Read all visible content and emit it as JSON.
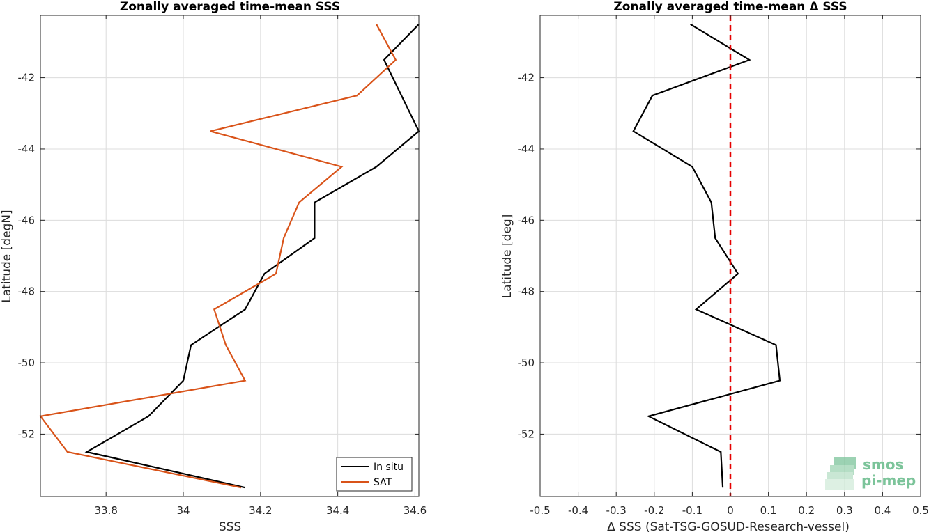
{
  "colors": {
    "in_situ": "#000000",
    "sat": "#d95319",
    "zero_line": "#e60000",
    "grid": "#dcdcdc",
    "axis": "#262626",
    "logo": "#7cc49a"
  },
  "chart_data": [
    {
      "type": "line",
      "title": "Zonally averaged time-mean SSS",
      "xlabel": "SSS",
      "ylabel": "Latitude [degN]",
      "xlim": [
        33.63,
        34.61
      ],
      "ylim": [
        -53.75,
        -40.25
      ],
      "xticks": [
        33.8,
        34,
        34.2,
        34.4,
        34.6
      ],
      "xtick_labels": [
        "33.8",
        "34",
        "34.2",
        "34.4",
        "34.6"
      ],
      "yticks": [
        -52,
        -50,
        -48,
        -46,
        -44,
        -42
      ],
      "ytick_labels": [
        "-52",
        "-50",
        "-48",
        "-46",
        "-44",
        "-42"
      ],
      "grid": true,
      "legend_position": "bottom-right",
      "series": [
        {
          "name": "In situ",
          "color": "#000000",
          "points": [
            [
              34.61,
              -40.5
            ],
            [
              34.52,
              -41.5
            ],
            [
              34.61,
              -43.5
            ],
            [
              34.5,
              -44.5
            ],
            [
              34.34,
              -45.5
            ],
            [
              34.34,
              -46.5
            ],
            [
              34.21,
              -47.5
            ],
            [
              34.16,
              -48.5
            ],
            [
              34.02,
              -49.5
            ],
            [
              34.0,
              -50.5
            ],
            [
              33.91,
              -51.5
            ],
            [
              33.75,
              -52.5
            ],
            [
              34.16,
              -53.5
            ]
          ]
        },
        {
          "name": "SAT",
          "color": "#d95319",
          "points": [
            [
              34.5,
              -40.5
            ],
            [
              34.55,
              -41.5
            ],
            [
              34.45,
              -42.5
            ],
            [
              34.07,
              -43.5
            ],
            [
              34.41,
              -44.5
            ],
            [
              34.3,
              -45.5
            ],
            [
              34.26,
              -46.5
            ],
            [
              34.24,
              -47.5
            ],
            [
              34.08,
              -48.5
            ],
            [
              34.11,
              -49.5
            ],
            [
              34.16,
              -50.5
            ],
            [
              33.63,
              -51.5
            ],
            [
              33.7,
              -52.5
            ],
            [
              34.15,
              -53.5
            ]
          ]
        }
      ]
    },
    {
      "type": "line",
      "title": "Zonally averaged time-mean Δ SSS",
      "xlabel": "Δ SSS (Sat-TSG-GOSUD-Research-vessel)",
      "ylabel": "Latitude [deg]",
      "xlim": [
        -0.5,
        0.5
      ],
      "ylim": [
        -53.75,
        -40.25
      ],
      "xticks": [
        -0.5,
        -0.4,
        -0.3,
        -0.2,
        -0.1,
        0,
        0.1,
        0.2,
        0.3,
        0.4,
        0.5
      ],
      "xtick_labels": [
        "-0.5",
        "-0.4",
        "-0.3",
        "-0.2",
        "-0.1",
        "0",
        "0.1",
        "0.2",
        "0.3",
        "0.4",
        "0.5"
      ],
      "yticks": [
        -52,
        -50,
        -48,
        -46,
        -44,
        -42
      ],
      "ytick_labels": [
        "-52",
        "-50",
        "-48",
        "-46",
        "-44",
        "-42"
      ],
      "grid": true,
      "reference_line_x": 0,
      "series": [
        {
          "color": "#000000",
          "points": [
            [
              -0.105,
              -40.5
            ],
            [
              0.05,
              -41.5
            ],
            [
              -0.205,
              -42.5
            ],
            [
              -0.255,
              -43.5
            ],
            [
              -0.1,
              -44.5
            ],
            [
              -0.05,
              -45.5
            ],
            [
              -0.04,
              -46.5
            ],
            [
              0.02,
              -47.5
            ],
            [
              -0.09,
              -48.5
            ],
            [
              0.12,
              -49.5
            ],
            [
              0.13,
              -50.5
            ],
            [
              -0.215,
              -51.5
            ],
            [
              -0.025,
              -52.5
            ],
            [
              -0.02,
              -53.5
            ]
          ]
        }
      ]
    }
  ],
  "logo": {
    "line1": "smos",
    "line2": "pi-mep"
  }
}
